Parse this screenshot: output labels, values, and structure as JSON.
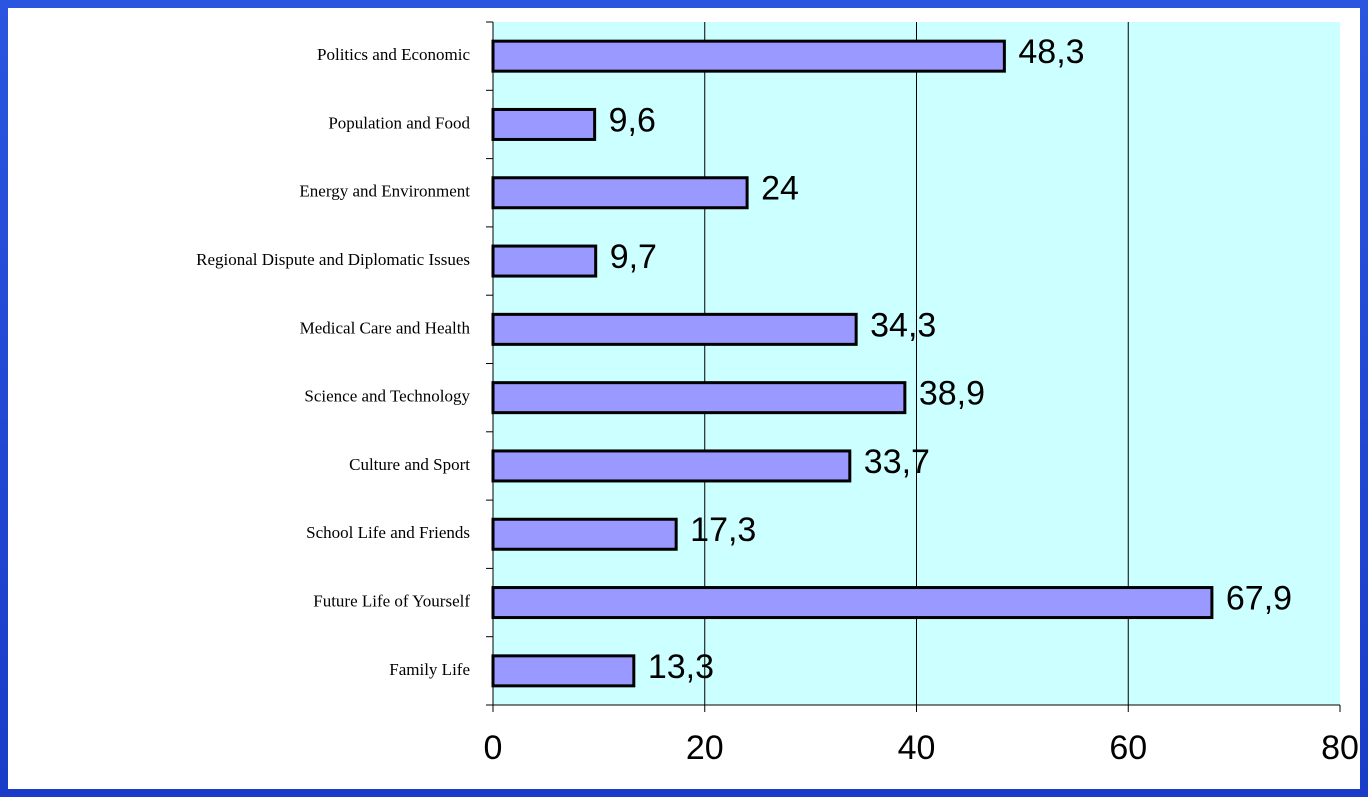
{
  "chart_data": {
    "type": "barh",
    "categories": [
      "Politics and Economic",
      "Population and Food",
      "Energy and Environment",
      "Regional Dispute and Diplomatic Issues",
      "Medical Care and Health",
      "Science and Technology",
      "Culture and Sport",
      "School Life and Friends",
      "Future Life of Yourself",
      "Family Life"
    ],
    "values": [
      48.3,
      9.6,
      24,
      9.7,
      34.3,
      38.9,
      33.7,
      17.3,
      67.9,
      13.3
    ],
    "value_labels": [
      "48,3",
      "9,6",
      "24",
      "9,7",
      "34,3",
      "38,9",
      "33,7",
      "17,3",
      "67,9",
      "13,3"
    ],
    "color": "#9999ff",
    "xlim": [
      0,
      80
    ],
    "xticks": [
      0,
      20,
      40,
      60,
      80
    ],
    "grid": true
  }
}
